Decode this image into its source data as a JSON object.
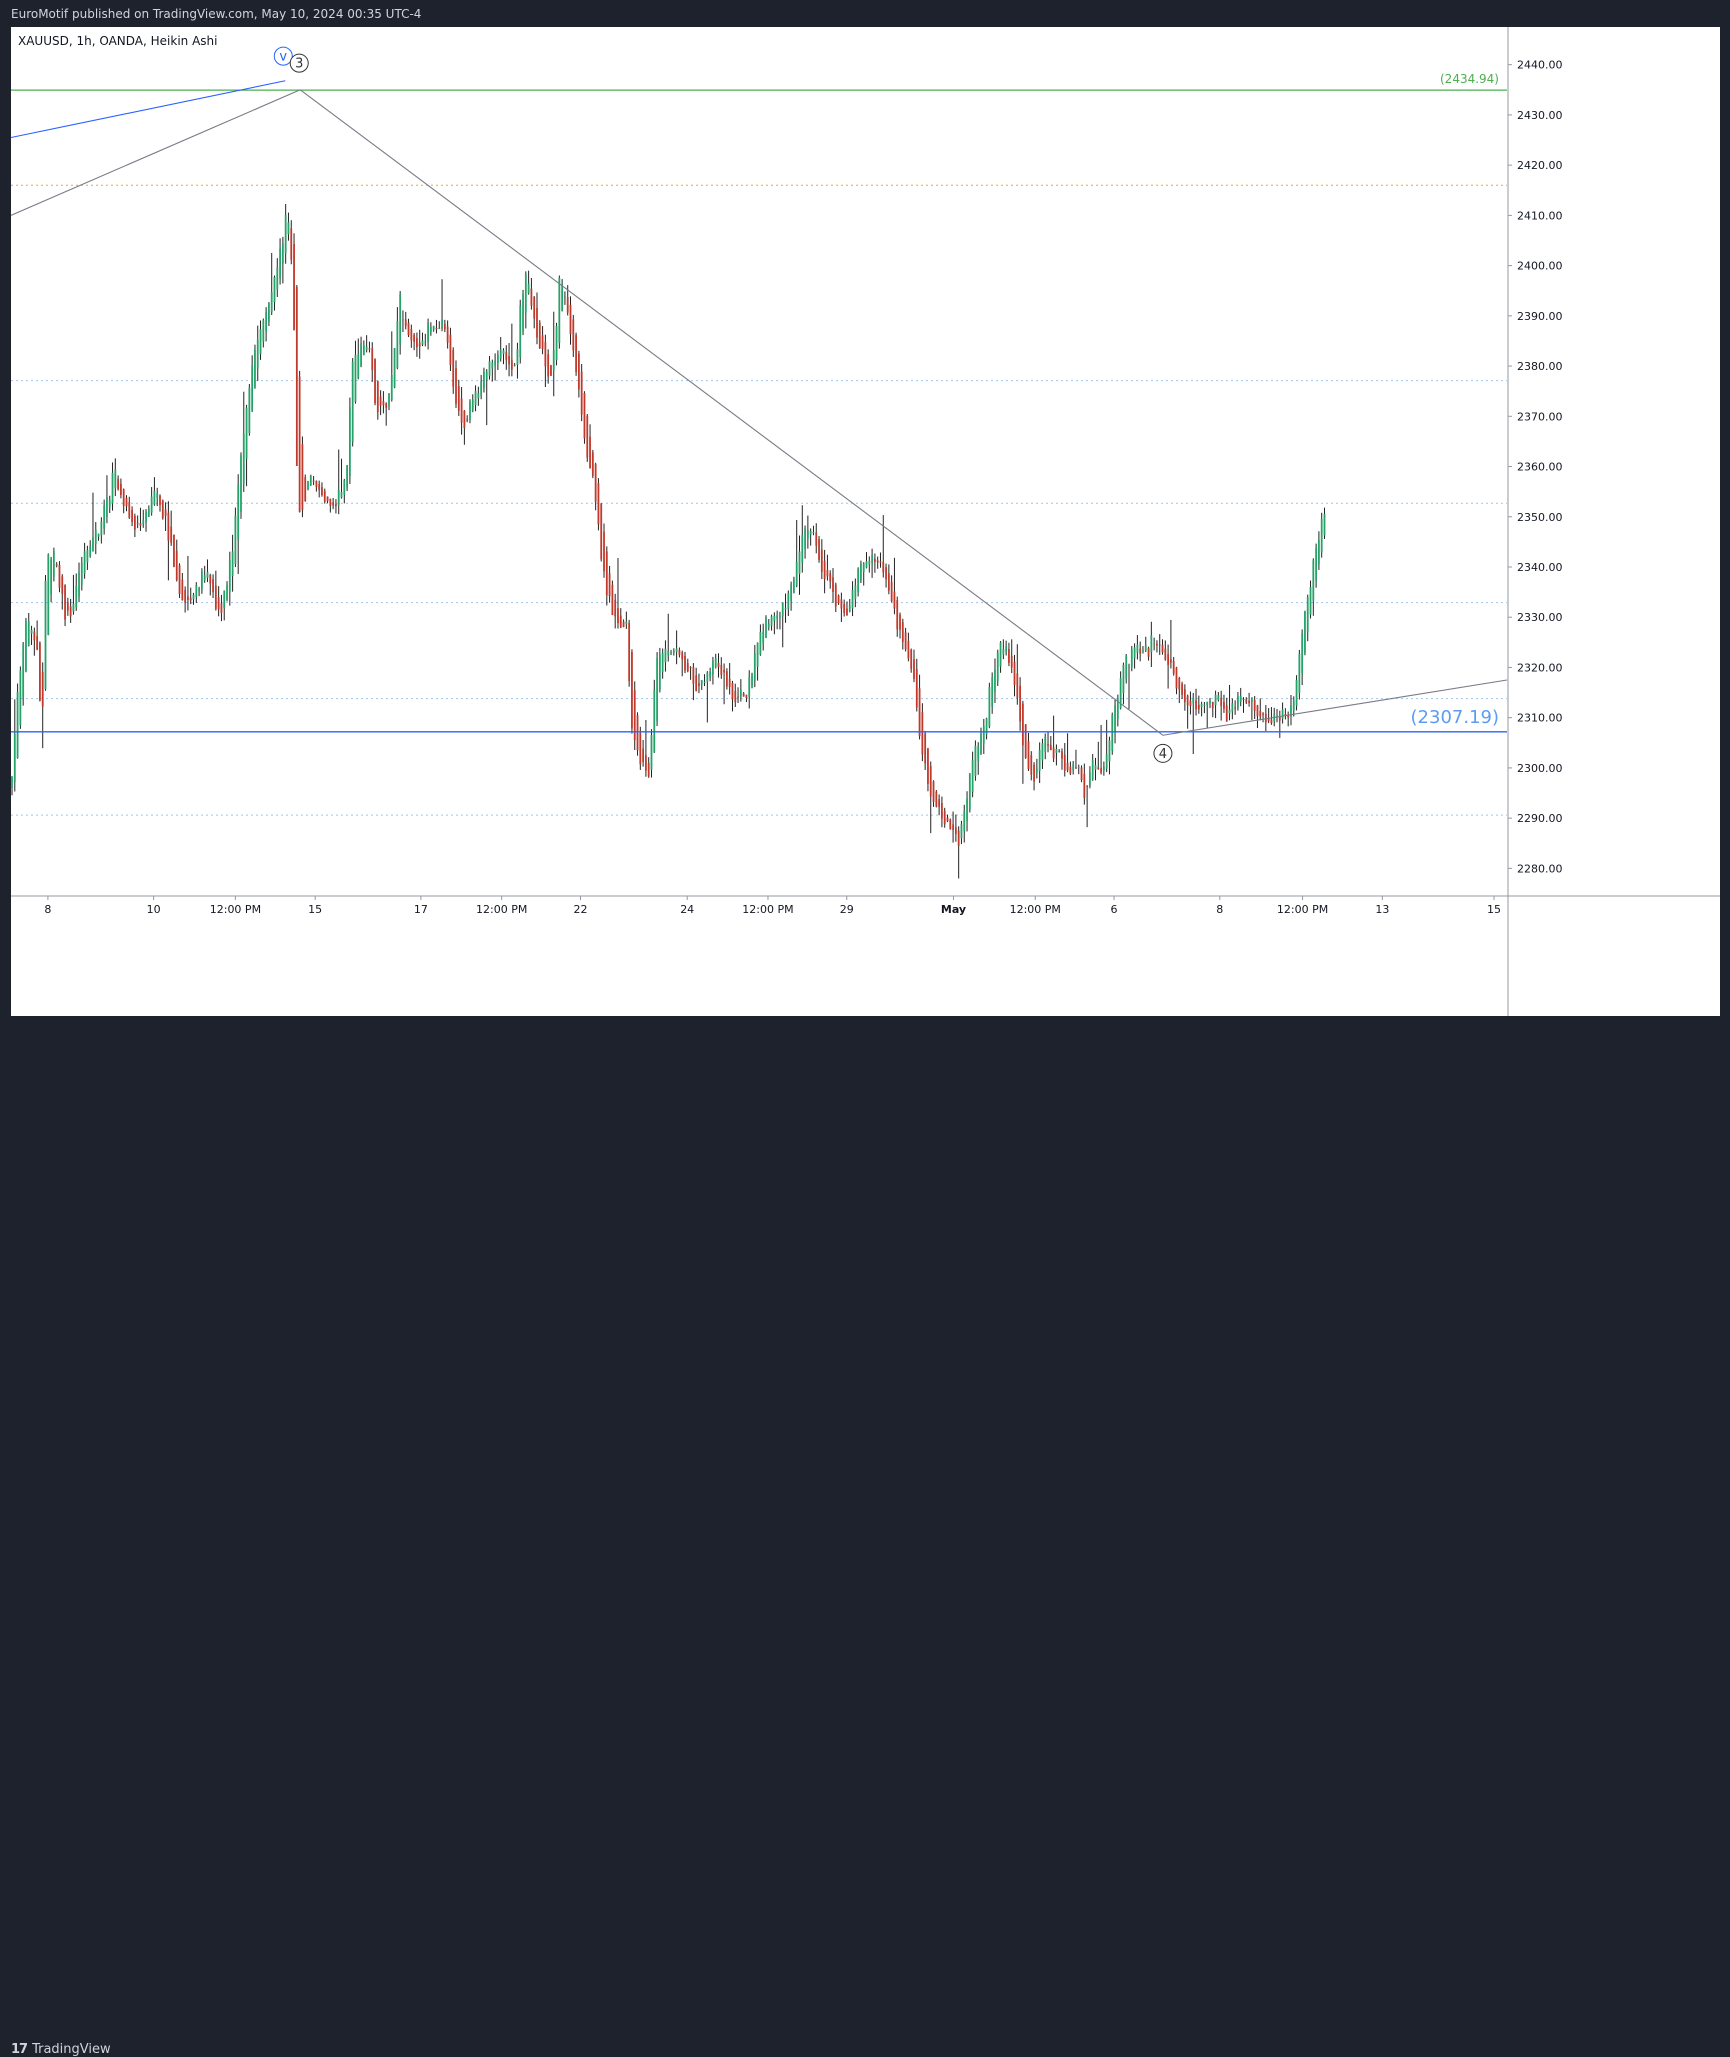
{
  "header": {
    "published_text": "EuroMotif published on TradingView.com, May 10, 2024 00:35 UTC-4"
  },
  "footer": {
    "brand_logo_text": "17",
    "brand_text": "TradingView"
  },
  "colors": {
    "background": "#1e222d",
    "chart_bg": "#ffffff",
    "up_candle": "#26a269",
    "down_candle": "#c0392b",
    "wick": "#222222",
    "grid_dotted": "#9ec5e8",
    "support_line": "#2962ff",
    "resistance_line": "#4caf50",
    "orange_dotted": "#f5a623",
    "trend_line": "#787b86",
    "wave_blue": "#2962ff"
  },
  "chart_data": {
    "type": "candlestick",
    "title": "XAUUSD, 1h, OANDA, Heikin Ashi",
    "symbol": "XAUUSD",
    "interval": "1h",
    "exchange": "OANDA",
    "style": "Heikin Ashi",
    "ylim": [
      2274.5,
      2447.5
    ],
    "xlim": [
      0,
      1500
    ],
    "y_ticks": [
      2280,
      2290,
      2300,
      2310,
      2320,
      2330,
      2340,
      2350,
      2360,
      2370,
      2380,
      2390,
      2400,
      2410,
      2420,
      2430,
      2440
    ],
    "y_tick_labels": [
      "2280.00",
      "2290.00",
      "2300.00",
      "2310.00",
      "2320.00",
      "2330.00",
      "2340.00",
      "2350.00",
      "2360.00",
      "2370.00",
      "2380.00",
      "2390.00",
      "2400.00",
      "2410.00",
      "2420.00",
      "2430.00",
      "2440.00"
    ],
    "x_ticks": [
      {
        "label": "8",
        "x": 37,
        "bold": false
      },
      {
        "label": "10",
        "x": 143,
        "bold": false
      },
      {
        "label": "12:00 PM",
        "x": 225,
        "bold": false
      },
      {
        "label": "15",
        "x": 305,
        "bold": false
      },
      {
        "label": "17",
        "x": 411,
        "bold": false
      },
      {
        "label": "12:00 PM",
        "x": 492,
        "bold": false
      },
      {
        "label": "22",
        "x": 571,
        "bold": false
      },
      {
        "label": "24",
        "x": 678,
        "bold": false
      },
      {
        "label": "12:00 PM",
        "x": 759,
        "bold": false
      },
      {
        "label": "29",
        "x": 838,
        "bold": false
      },
      {
        "label": "May",
        "x": 945,
        "bold": true
      },
      {
        "label": "12:00 PM",
        "x": 1027,
        "bold": false
      },
      {
        "label": "6",
        "x": 1106,
        "bold": false
      },
      {
        "label": "8",
        "x": 1212,
        "bold": false
      },
      {
        "label": "12:00 PM",
        "x": 1295,
        "bold": false
      },
      {
        "label": "13",
        "x": 1375,
        "bold": false
      },
      {
        "label": "15",
        "x": 1487,
        "bold": false
      }
    ],
    "dotted_levels": [
      2290.6,
      2313.8,
      2332.9,
      2352.7,
      2377.1
    ],
    "orange_level": 2416.0,
    "support_level": {
      "value": 2307.19,
      "label": "(2307.19)"
    },
    "resistance_level": {
      "value": 2434.94,
      "label": "(2434.94)"
    },
    "trendlines": [
      {
        "x1": 0,
        "y1": 2410.0,
        "x2": 290,
        "y2": 2435.0,
        "color": "trend"
      },
      {
        "x1": 290,
        "y1": 2435.0,
        "x2": 1155,
        "y2": 2306.5,
        "color": "trend"
      },
      {
        "x1": 1155,
        "y1": 2306.5,
        "x2": 1500,
        "y2": 2317.5,
        "color": "trend"
      },
      {
        "x1": 0,
        "y1": 2425.5,
        "x2": 275,
        "y2": 2436.8,
        "color": "wave_blue"
      }
    ],
    "wave_labels": [
      {
        "text": "v",
        "x": 273,
        "y": 2441.7,
        "color": "wave_blue"
      },
      {
        "text": "3",
        "x": 289,
        "y": 2440.3,
        "color": "dark"
      },
      {
        "text": "4",
        "x": 1155,
        "y": 2302.9,
        "color": "dark"
      }
    ],
    "price_path": [
      [
        0,
        2296
      ],
      [
        8,
        2318
      ],
      [
        15,
        2330
      ],
      [
        26,
        2325
      ],
      [
        31,
        2306
      ],
      [
        35,
        2340
      ],
      [
        45,
        2342
      ],
      [
        52,
        2332
      ],
      [
        60,
        2330
      ],
      [
        72,
        2342
      ],
      [
        90,
        2348
      ],
      [
        105,
        2360
      ],
      [
        113,
        2352
      ],
      [
        122,
        2347
      ],
      [
        135,
        2350
      ],
      [
        145,
        2356
      ],
      [
        155,
        2349
      ],
      [
        170,
        2333
      ],
      [
        183,
        2334
      ],
      [
        196,
        2340
      ],
      [
        210,
        2330
      ],
      [
        222,
        2343
      ],
      [
        232,
        2365
      ],
      [
        242,
        2381
      ],
      [
        255,
        2390
      ],
      [
        265,
        2398
      ],
      [
        272,
        2404
      ],
      [
        276,
        2410
      ],
      [
        280,
        2406
      ],
      [
        283,
        2395
      ],
      [
        286,
        2365
      ],
      [
        288,
        2350
      ],
      [
        292,
        2352
      ],
      [
        300,
        2357
      ],
      [
        310,
        2355
      ],
      [
        318,
        2352
      ],
      [
        327,
        2353
      ],
      [
        336,
        2358
      ],
      [
        342,
        2380
      ],
      [
        350,
        2385
      ],
      [
        360,
        2384
      ],
      [
        366,
        2372
      ],
      [
        375,
        2371
      ],
      [
        383,
        2380
      ],
      [
        390,
        2393
      ],
      [
        398,
        2386
      ],
      [
        405,
        2384
      ],
      [
        413,
        2385
      ],
      [
        420,
        2388
      ],
      [
        428,
        2387
      ],
      [
        433,
        2389
      ],
      [
        440,
        2381
      ],
      [
        446,
        2372
      ],
      [
        454,
        2368
      ],
      [
        461,
        2372
      ],
      [
        470,
        2375
      ],
      [
        480,
        2381
      ],
      [
        492,
        2383
      ],
      [
        500,
        2381
      ],
      [
        507,
        2379
      ],
      [
        512,
        2395
      ],
      [
        516,
        2399
      ],
      [
        522,
        2391
      ],
      [
        532,
        2383
      ],
      [
        540,
        2377
      ],
      [
        546,
        2385
      ],
      [
        550,
        2398
      ],
      [
        556,
        2395
      ],
      [
        562,
        2385
      ],
      [
        570,
        2375
      ],
      [
        578,
        2361
      ],
      [
        585,
        2356
      ],
      [
        592,
        2341
      ],
      [
        597,
        2335
      ],
      [
        604,
        2330
      ],
      [
        612,
        2328
      ],
      [
        617,
        2330
      ],
      [
        622,
        2308
      ],
      [
        632,
        2300
      ],
      [
        640,
        2300
      ],
      [
        647,
        2322
      ],
      [
        660,
        2324
      ],
      [
        675,
        2321
      ],
      [
        690,
        2315
      ],
      [
        705,
        2322
      ],
      [
        715,
        2318
      ],
      [
        725,
        2313
      ],
      [
        738,
        2315
      ],
      [
        752,
        2328
      ],
      [
        765,
        2330
      ],
      [
        782,
        2335
      ],
      [
        795,
        2348
      ],
      [
        805,
        2346
      ],
      [
        813,
        2340
      ],
      [
        825,
        2333
      ],
      [
        838,
        2330
      ],
      [
        850,
        2340
      ],
      [
        865,
        2342
      ],
      [
        877,
        2338
      ],
      [
        888,
        2330
      ],
      [
        897,
        2323
      ],
      [
        905,
        2318
      ],
      [
        912,
        2305
      ],
      [
        920,
        2296
      ],
      [
        932,
        2291
      ],
      [
        943,
        2288
      ],
      [
        950,
        2285
      ],
      [
        957,
        2292
      ],
      [
        963,
        2300
      ],
      [
        970,
        2306
      ],
      [
        977,
        2310
      ],
      [
        984,
        2318
      ],
      [
        993,
        2325
      ],
      [
        1002,
        2320
      ],
      [
        1008,
        2315
      ],
      [
        1016,
        2302
      ],
      [
        1025,
        2297
      ],
      [
        1033,
        2306
      ],
      [
        1042,
        2303
      ],
      [
        1052,
        2303
      ],
      [
        1061,
        2298
      ],
      [
        1070,
        2302
      ],
      [
        1077,
        2293
      ],
      [
        1085,
        2302
      ],
      [
        1093,
        2298
      ],
      [
        1101,
        2306
      ],
      [
        1108,
        2314
      ],
      [
        1116,
        2320
      ],
      [
        1125,
        2323
      ],
      [
        1133,
        2325
      ],
      [
        1140,
        2323
      ],
      [
        1148,
        2326
      ],
      [
        1157,
        2322
      ],
      [
        1166,
        2318
      ],
      [
        1176,
        2313
      ],
      [
        1187,
        2313
      ],
      [
        1198,
        2312
      ],
      [
        1209,
        2315
      ],
      [
        1218,
        2310
      ],
      [
        1227,
        2313
      ],
      [
        1235,
        2315
      ],
      [
        1242,
        2313
      ],
      [
        1250,
        2311
      ],
      [
        1258,
        2309
      ],
      [
        1265,
        2310
      ],
      [
        1272,
        2311
      ],
      [
        1280,
        2310
      ],
      [
        1287,
        2314
      ],
      [
        1293,
        2325
      ],
      [
        1300,
        2333
      ],
      [
        1307,
        2342
      ],
      [
        1313,
        2347
      ],
      [
        1319,
        2352
      ]
    ],
    "candle_spacing": 2.8,
    "random_seed": 7
  }
}
